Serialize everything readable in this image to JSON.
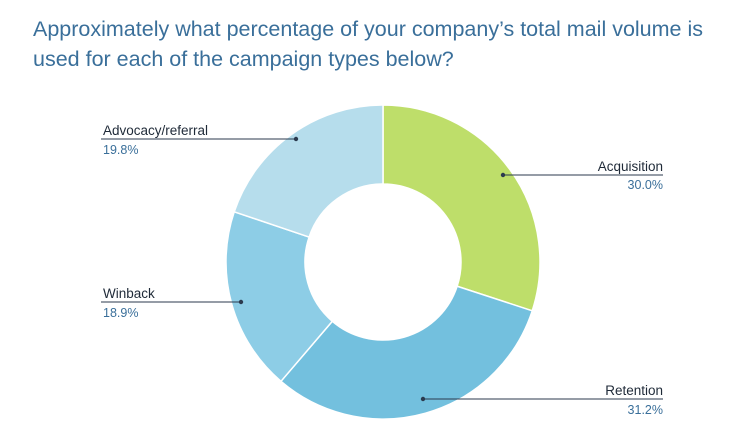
{
  "chart_data": {
    "type": "pie",
    "title": "Approximately what percentage of your company’s total mail volume is used for each of the campaign types below?",
    "donut": true,
    "categories": [
      "Acquisition",
      "Retention",
      "Winback",
      "Advocacy/referral"
    ],
    "values": [
      30.0,
      31.2,
      18.9,
      19.8
    ],
    "value_labels": [
      "30.0%",
      "31.2%",
      "18.9%",
      "19.8%"
    ],
    "colors": [
      "#bede6a",
      "#73c0de",
      "#8dcde6",
      "#b6ddec"
    ],
    "label_text_color": "#1f2a38",
    "value_text_color": "#3a6f9a",
    "title_color": "#3a6f9a"
  }
}
